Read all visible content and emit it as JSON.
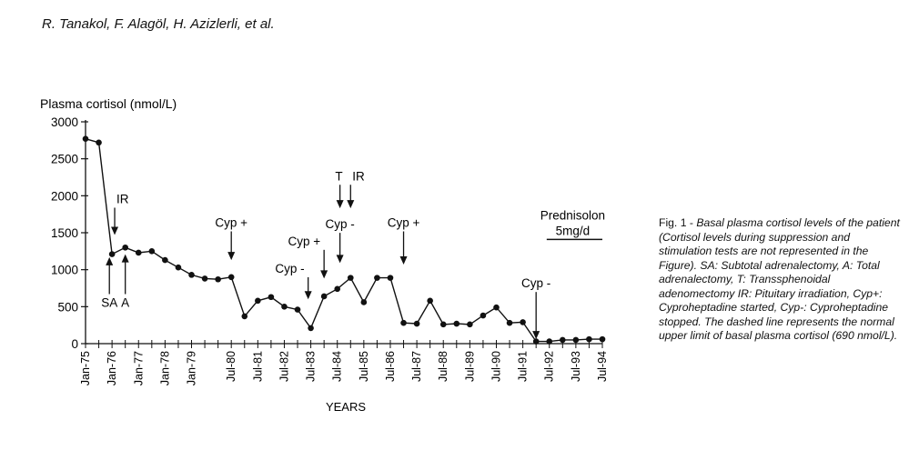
{
  "header": {
    "authors": "R. Tanakol, F. Alagöl, H. Azizlerli, et al."
  },
  "caption": {
    "lead": "Fig. 1 - ",
    "body": "Basal plasma cortisol levels of the patient (Cortisol levels during suppression and stimulation tests are not represented in the Figure). SA: Subtotal adrenalectomy, A: Total adrenalectomy, T: Transsphenoidal adenomectomy IR: Pituitary irradiation, Cyp+: Cyproheptadine started, Cyp-: Cyproheptadine stopped. The dashed line represents the normal upper limit of basal plasma cortisol (690 nmol/L)."
  },
  "chart_data": {
    "type": "line",
    "title": "",
    "ylabel": "Plasma cortisol (nmol/L)",
    "xlabel": "YEARS",
    "ylim": [
      0,
      3000
    ],
    "yticks": [
      0,
      500,
      1000,
      1500,
      2000,
      2500,
      3000
    ],
    "x_range_years": [
      1975.0,
      1994.5
    ],
    "x_tick_labels": [
      {
        "label": "Jan-75",
        "year": 1975.0
      },
      {
        "label": "Jan-76",
        "year": 1976.0
      },
      {
        "label": "Jan-77",
        "year": 1977.0
      },
      {
        "label": "Jan-78",
        "year": 1978.0
      },
      {
        "label": "Jan-79",
        "year": 1979.0
      },
      {
        "label": "Jul-80",
        "year": 1980.5
      },
      {
        "label": "Jul-81",
        "year": 1981.5
      },
      {
        "label": "Jul-82",
        "year": 1982.5
      },
      {
        "label": "Jul-83",
        "year": 1983.5
      },
      {
        "label": "Jul-84",
        "year": 1984.5
      },
      {
        "label": "Jul-85",
        "year": 1985.5
      },
      {
        "label": "Jul-86",
        "year": 1986.5
      },
      {
        "label": "Jul-87",
        "year": 1987.5
      },
      {
        "label": "Jul-88",
        "year": 1988.5
      },
      {
        "label": "Jul-89",
        "year": 1989.5
      },
      {
        "label": "Jul-90",
        "year": 1990.5
      },
      {
        "label": "Jul-91",
        "year": 1991.5
      },
      {
        "label": "Jul-92",
        "year": 1992.5
      },
      {
        "label": "Jul-93",
        "year": 1993.5
      },
      {
        "label": "Jul-94",
        "year": 1994.5
      }
    ],
    "series": [
      {
        "name": "",
        "points": [
          [
            1975.0,
            2770
          ],
          [
            1975.5,
            2720
          ],
          [
            1976.0,
            1210
          ],
          [
            1976.5,
            1300
          ],
          [
            1977.0,
            1230
          ],
          [
            1977.5,
            1250
          ],
          [
            1978.0,
            1130
          ],
          [
            1978.5,
            1030
          ],
          [
            1979.0,
            930
          ],
          [
            1979.5,
            880
          ],
          [
            1980.0,
            870
          ],
          [
            1980.5,
            900
          ],
          [
            1981.0,
            370
          ],
          [
            1981.5,
            580
          ],
          [
            1982.0,
            630
          ],
          [
            1982.5,
            500
          ],
          [
            1983.0,
            460
          ],
          [
            1983.5,
            210
          ],
          [
            1984.0,
            640
          ],
          [
            1984.5,
            740
          ],
          [
            1985.0,
            890
          ],
          [
            1985.5,
            560
          ],
          [
            1986.0,
            890
          ],
          [
            1986.5,
            890
          ],
          [
            1987.0,
            280
          ],
          [
            1987.5,
            270
          ],
          [
            1988.0,
            580
          ],
          [
            1988.5,
            260
          ],
          [
            1989.0,
            270
          ],
          [
            1989.5,
            260
          ],
          [
            1990.0,
            380
          ],
          [
            1990.5,
            490
          ],
          [
            1991.0,
            280
          ],
          [
            1991.5,
            290
          ],
          [
            1992.0,
            30
          ],
          [
            1992.5,
            30
          ],
          [
            1993.0,
            50
          ],
          [
            1993.5,
            50
          ],
          [
            1994.0,
            60
          ],
          [
            1994.5,
            60
          ]
        ]
      }
    ],
    "annotations": [
      {
        "label": "SA",
        "year": 1975.9,
        "direction": "up",
        "tip_value": 1170,
        "label_value": 670
      },
      {
        "label": "A",
        "year": 1976.5,
        "direction": "up",
        "tip_value": 1210,
        "label_value": 670
      },
      {
        "label": "IR",
        "year": 1976.1,
        "direction": "down",
        "tip_value": 1470,
        "label_value": 1900
      },
      {
        "label": "Cyp +",
        "year": 1980.5,
        "direction": "down",
        "tip_value": 1130,
        "label_value": 1580
      },
      {
        "label": "Cyp -",
        "year": 1983.4,
        "direction": "down",
        "tip_value": 600,
        "label_value": 960
      },
      {
        "label": "Cyp +",
        "year": 1984.0,
        "direction": "down",
        "tip_value": 880,
        "label_value": 1330
      },
      {
        "label": "Cyp -",
        "year": 1984.6,
        "direction": "down",
        "tip_value": 1090,
        "label_value": 1560
      },
      {
        "label": "T",
        "year": 1984.6,
        "direction": "down",
        "tip_value": 1830,
        "label_value": 2210
      },
      {
        "label": "IR",
        "year": 1985.0,
        "direction": "down",
        "tip_value": 1830,
        "label_value": 2210
      },
      {
        "label": "Cyp +",
        "year": 1987.0,
        "direction": "down",
        "tip_value": 1070,
        "label_value": 1580
      },
      {
        "label": "Cyp -",
        "year": 1992.0,
        "direction": "down",
        "tip_value": 60,
        "label_value": 760
      }
    ],
    "treatment_bar": {
      "label_line1": "Prednisolon",
      "label_line2": "5mg/d",
      "from_year": 1992.4,
      "to_year": 1994.5,
      "value": 1410
    },
    "grid": false,
    "legend": "none"
  }
}
